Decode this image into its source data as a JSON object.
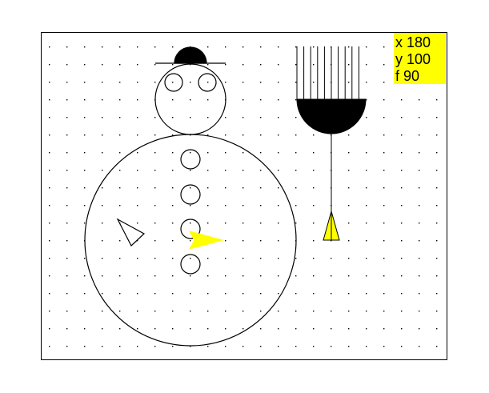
{
  "canvas": {
    "grid": true,
    "background": "#ffffff",
    "border_color": "#000000"
  },
  "readout": {
    "x_line": "x 180",
    "y_line": "y 100",
    "f_line": "f 90",
    "background": "#ffff00"
  },
  "turtles": {
    "active_color": "#ffff00",
    "outline_color": "#000000"
  },
  "icons": {
    "snowman": "snowman-drawing",
    "paintbrush": "paintbrush-drawing",
    "turtle": "turtle-triangle-icon"
  }
}
